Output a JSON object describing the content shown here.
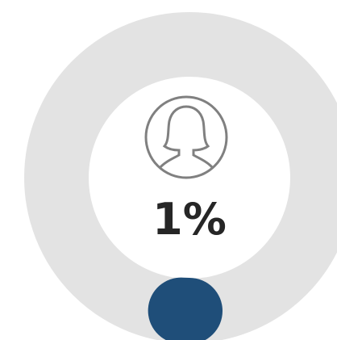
{
  "chart_data": {
    "type": "donut",
    "values": [
      1
    ],
    "value_labels": [
      "1%"
    ],
    "color": "#1f4e79"
  }
}
